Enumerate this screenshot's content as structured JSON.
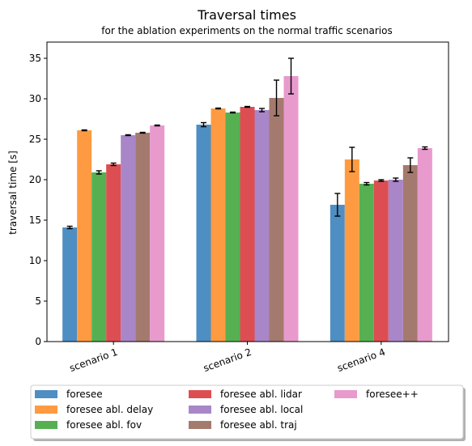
{
  "chart_data": {
    "type": "bar",
    "title": "Traversal times",
    "subtitle": "for the ablation experiments on the normal traffic scenarios",
    "xlabel": "",
    "ylabel": "traversal time [s]",
    "ylim": [
      0,
      37
    ],
    "yticks": [
      0,
      5,
      10,
      15,
      20,
      25,
      30,
      35
    ],
    "grid": false,
    "legend_position": "bottom-center",
    "categories": [
      "scenario 1",
      "scenario 2",
      "scenario 4"
    ],
    "series": [
      {
        "name": "foresee",
        "color": "#4e8ec3",
        "values": [
          14.1,
          26.8,
          16.9
        ],
        "errors": [
          0.15,
          0.25,
          1.4
        ]
      },
      {
        "name": "foresee abl. delay",
        "color": "#fe9b42",
        "values": [
          26.1,
          28.8,
          22.5
        ],
        "errors": [
          0.05,
          0.05,
          1.5
        ]
      },
      {
        "name": "foresee abl. fov",
        "color": "#56b052",
        "values": [
          20.9,
          28.3,
          19.5
        ],
        "errors": [
          0.2,
          0.05,
          0.15
        ]
      },
      {
        "name": "foresee abl. lidar",
        "color": "#dd4e52",
        "values": [
          21.9,
          29.0,
          19.9
        ],
        "errors": [
          0.15,
          0.05,
          0.1
        ]
      },
      {
        "name": "foresee abl. local",
        "color": "#a886c7",
        "values": [
          25.5,
          28.6,
          20.0
        ],
        "errors": [
          0.05,
          0.2,
          0.2
        ]
      },
      {
        "name": "foresee abl. traj",
        "color": "#a47a6e",
        "values": [
          25.8,
          30.1,
          21.8
        ],
        "errors": [
          0.05,
          2.2,
          0.9
        ]
      },
      {
        "name": "foresee++",
        "color": "#e89acd",
        "values": [
          26.7,
          32.8,
          23.9
        ],
        "errors": [
          0.05,
          2.2,
          0.15
        ]
      }
    ]
  }
}
